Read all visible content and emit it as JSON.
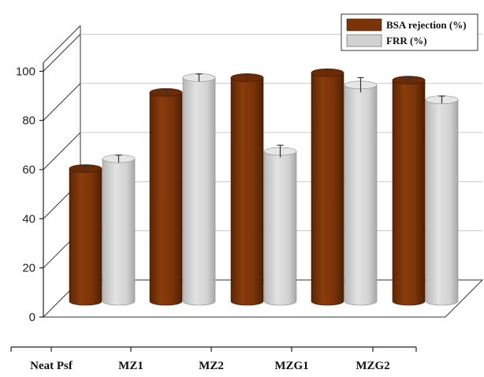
{
  "chart_data": {
    "type": "bar",
    "style": "3d-cylinder",
    "categories": [
      "Neat Psf",
      "MZ1",
      "MZ2",
      "MZG1",
      "MZG2"
    ],
    "series": [
      {
        "name": "BSA rejection (%)",
        "color": "#7a3408",
        "values": [
          54,
          85,
          91,
          93,
          90
        ],
        "errors": [
          1,
          1,
          1.5,
          1.5,
          1
        ]
      },
      {
        "name": "FRR (%)",
        "color": "#d2d2d2",
        "values": [
          58,
          91,
          61,
          88,
          82
        ],
        "errors": [
          1.5,
          1.5,
          2.5,
          3,
          1.5
        ]
      }
    ],
    "ylim": [
      0,
      100
    ],
    "yticks": [
      0,
      20,
      40,
      60,
      80,
      100
    ],
    "xlabel": "",
    "ylabel": "",
    "grid": true,
    "legend_position": "top-right"
  }
}
